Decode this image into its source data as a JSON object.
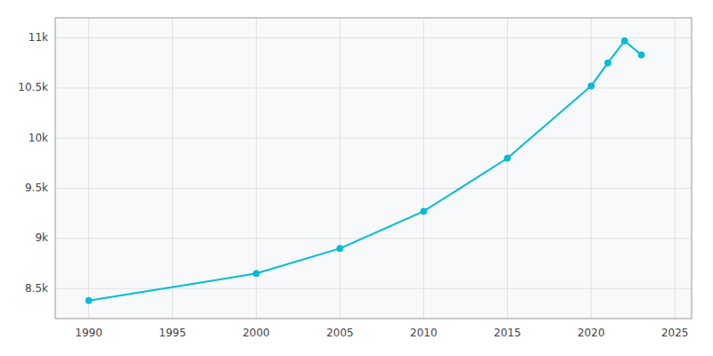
{
  "chart_data": {
    "type": "line",
    "x": [
      1990,
      2000,
      2005,
      2010,
      2015,
      2020,
      2021,
      2022,
      2023
    ],
    "values": [
      8380,
      8650,
      8900,
      9270,
      9800,
      10520,
      10750,
      10970,
      10830
    ],
    "color": "#00bcd4",
    "marker": "circle",
    "xlim": [
      1988,
      2026
    ],
    "xticks": [
      1990,
      1995,
      2000,
      2005,
      2010,
      2015,
      2020,
      2025
    ],
    "ylim": [
      8200,
      11200
    ],
    "yticks": [
      {
        "value": 8500,
        "label": "8.5k"
      },
      {
        "value": 9000,
        "label": "9k"
      },
      {
        "value": 9500,
        "label": "9.5k"
      },
      {
        "value": 10000,
        "label": "10k"
      },
      {
        "value": 10500,
        "label": "10.5k"
      },
      {
        "value": 11000,
        "label": "11k"
      }
    ],
    "grid": true
  }
}
